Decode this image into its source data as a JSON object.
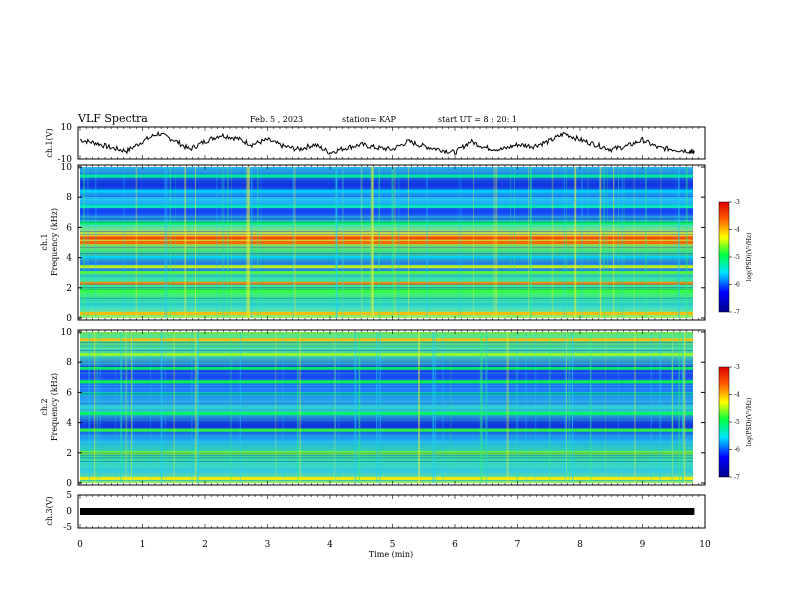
{
  "header": {
    "title": "VLF Spectra",
    "date": "Feb. 5 , 2023",
    "station": "station= KAP",
    "start": "start UT = 8 : 20: 1"
  },
  "chart_data": [
    {
      "type": "line",
      "panel": "channel-1-voltage",
      "ylabel": "ch.1(V)",
      "ylim": [
        -10,
        10
      ],
      "yticks": [
        "10",
        "-10"
      ],
      "xlim": [
        0,
        10
      ],
      "color": "#000000",
      "x": [
        0.0,
        0.25,
        0.5,
        0.75,
        1.0,
        1.25,
        1.5,
        1.75,
        2.0,
        2.25,
        2.5,
        2.75,
        3.0,
        3.25,
        3.5,
        3.75,
        4.0,
        4.25,
        4.5,
        4.75,
        5.0,
        5.25,
        5.5,
        5.75,
        6.0,
        6.25,
        6.5,
        6.75,
        7.0,
        7.25,
        7.5,
        7.75,
        8.0,
        8.25,
        8.5,
        8.75,
        9.0,
        9.25,
        9.5,
        9.75,
        9.83
      ],
      "y": [
        2,
        0,
        -3,
        -5,
        1,
        6,
        2,
        -4,
        1,
        5,
        3,
        -1,
        2,
        -2,
        -4,
        -1,
        -6,
        -3,
        -1,
        -3,
        -4,
        1,
        -2,
        -4,
        -6,
        1,
        -3,
        -4,
        -1,
        -2,
        1,
        6,
        2,
        -1,
        -4,
        -2,
        2,
        -3,
        -4,
        -5,
        -6
      ]
    },
    {
      "type": "heatmap",
      "panel": "channel-1-spectrogram",
      "ylabel": "Frequency (kHz)",
      "channel_label": "ch.1",
      "ylim": [
        0,
        10
      ],
      "yticks": [
        "0",
        "2",
        "4",
        "6",
        "8",
        "10"
      ],
      "xlim": [
        0,
        10
      ],
      "colorbar": {
        "label": "log(PSD)(V²/Hz)",
        "range": [
          -7,
          -3
        ],
        "ticks": [
          "-3",
          "-4",
          "-5",
          "-6",
          "-7"
        ]
      },
      "bands_khz": [
        {
          "f": 0.3,
          "level": -4.0
        },
        {
          "f": 1.8,
          "level": -4.8
        },
        {
          "f": 2.3,
          "level": -3.8
        },
        {
          "f": 3.0,
          "level": -4.7
        },
        {
          "f": 3.4,
          "level": -4.4
        },
        {
          "f": 4.0,
          "level": -5.6
        },
        {
          "f": 5.0,
          "level": -3.6
        },
        {
          "f": 5.3,
          "level": -3.4
        },
        {
          "f": 6.3,
          "level": -5.0
        },
        {
          "f": 7.4,
          "level": -5.3
        },
        {
          "f": 8.4,
          "level": -5.6
        },
        {
          "f": 9.4,
          "level": -5.2
        }
      ]
    },
    {
      "type": "heatmap",
      "panel": "channel-2-spectrogram",
      "ylabel": "Frequency (kHz)",
      "channel_label": "ch.2",
      "ylim": [
        0,
        10
      ],
      "yticks": [
        "0",
        "2",
        "4",
        "6",
        "8",
        "10"
      ],
      "xlim": [
        0,
        10
      ],
      "colorbar": {
        "label": "log(PSD)(V²/Hz)",
        "range": [
          -7,
          -3
        ],
        "ticks": [
          "-3",
          "-4",
          "-5",
          "-6",
          "-7"
        ]
      },
      "bands_khz": [
        {
          "f": 0.3,
          "level": -4.2
        },
        {
          "f": 2.0,
          "level": -4.6
        },
        {
          "f": 3.5,
          "level": -4.8
        },
        {
          "f": 4.6,
          "level": -5.0
        },
        {
          "f": 5.9,
          "level": -5.2
        },
        {
          "f": 6.7,
          "level": -4.9
        },
        {
          "f": 7.6,
          "level": -5.0
        },
        {
          "f": 8.5,
          "level": -4.5
        },
        {
          "f": 9.5,
          "level": -4.0
        }
      ]
    },
    {
      "type": "line",
      "panel": "channel-3-voltage",
      "ylabel": "ch.3(V)",
      "ylim": [
        -5,
        5
      ],
      "yticks": [
        "5",
        "0",
        "-5"
      ],
      "xlim": [
        0,
        10
      ],
      "color": "#000000",
      "x": [
        0.0,
        9.83
      ],
      "y": [
        0,
        0
      ]
    }
  ],
  "xaxis": {
    "label": "Time (min)",
    "ticks": [
      "0",
      "1",
      "2",
      "3",
      "4",
      "5",
      "6",
      "7",
      "8",
      "9",
      "10"
    ]
  }
}
